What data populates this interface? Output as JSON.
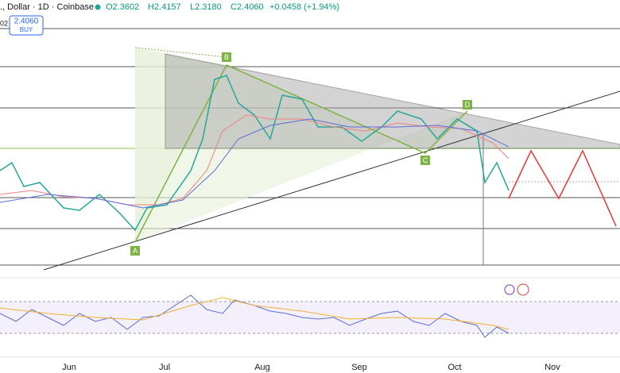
{
  "header": {
    "symbol": "., Dollar · 1D · Coinbase",
    "open": "O2.3602",
    "high": "H2.4157",
    "low": "L2.3180",
    "close": "C2.4060",
    "change": "+0.0458 (+1.94%)"
  },
  "buy_button": {
    "price": "2.4060",
    "label": "BUY"
  },
  "edge_label": "02",
  "pattern_points": [
    "A",
    "B",
    "C",
    "D"
  ],
  "x_axis": {
    "labels": [
      "Jun",
      "Jul",
      "Aug",
      "Sep",
      "Oct",
      "Nov"
    ]
  }
}
